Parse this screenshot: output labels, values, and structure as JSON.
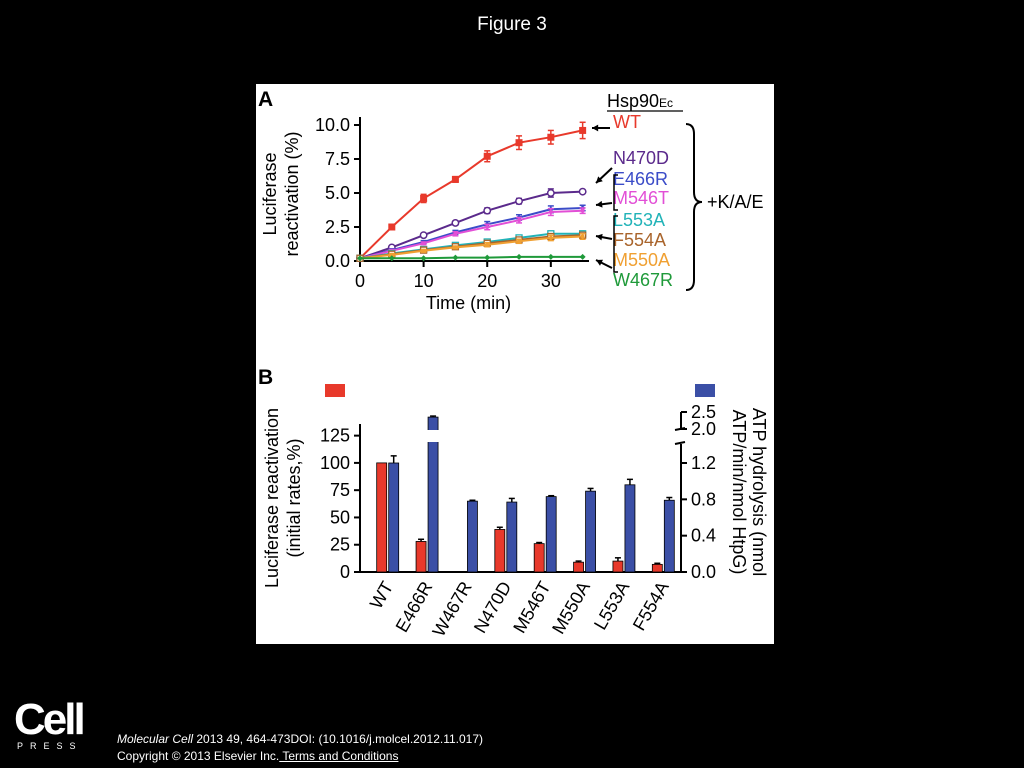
{
  "figure_title": "Figure 3",
  "logo": {
    "word": "Cell",
    "subword": "PRESS"
  },
  "citation": {
    "journal": "Molecular Cell",
    "rest": " 2013 49, 464-473DOI: (10.1016/j.molcel.2012.11.017)"
  },
  "copyright": {
    "text": "Copyright © 2013 Elsevier Inc.",
    "link": " Terms and Conditions"
  },
  "chart_data": [
    {
      "type": "line",
      "panel_label": "A",
      "header": "Hsp90",
      "header_sub": "Ec",
      "xlabel": "Time (min)",
      "ylabel_lines": [
        "Luciferase",
        "reactivation (%)"
      ],
      "xlim": [
        0,
        36
      ],
      "ylim": [
        0,
        10
      ],
      "xticks": [
        "0",
        "10",
        "20",
        "30"
      ],
      "yticks": [
        "0.0",
        "2.5",
        "5.0",
        "7.5",
        "10.0"
      ],
      "bracket_label": "+K/A/E",
      "x": [
        0,
        5,
        10,
        15,
        20,
        25,
        30,
        35
      ],
      "series": [
        {
          "name": "WT",
          "color": "#e8392b",
          "marker": "square",
          "values": [
            0.2,
            2.5,
            4.6,
            6.0,
            7.7,
            8.7,
            9.1,
            9.6
          ],
          "errors": [
            0,
            0.15,
            0.3,
            0.2,
            0.4,
            0.5,
            0.5,
            0.6
          ]
        },
        {
          "name": "N470D",
          "color": "#5b2a8c",
          "marker": "circle",
          "values": [
            0.2,
            1.0,
            1.9,
            2.8,
            3.7,
            4.4,
            5.0,
            5.1
          ],
          "errors": [
            0,
            0.1,
            0.1,
            0.15,
            0.2,
            0.2,
            0.3,
            0.1
          ]
        },
        {
          "name": "E466R",
          "color": "#3b4cc8",
          "marker": "none",
          "values": [
            0.2,
            0.8,
            1.4,
            2.1,
            2.7,
            3.2,
            3.8,
            3.9
          ],
          "errors": [
            0,
            0.1,
            0.1,
            0.15,
            0.2,
            0.2,
            0.25,
            0.2
          ]
        },
        {
          "name": "M546T",
          "color": "#e24fd6",
          "marker": "none",
          "values": [
            0.2,
            0.75,
            1.3,
            2.0,
            2.5,
            3.0,
            3.6,
            3.7
          ],
          "errors": [
            0,
            0.1,
            0.1,
            0.15,
            0.2,
            0.2,
            0.25,
            0.2
          ]
        },
        {
          "name": "L553A",
          "color": "#22b3b8",
          "marker": "square-open",
          "values": [
            0.2,
            0.55,
            0.85,
            1.15,
            1.4,
            1.7,
            2.0,
            2.0
          ],
          "errors": [
            0,
            0.1,
            0.1,
            0.1,
            0.15,
            0.15,
            0.2,
            0.2
          ]
        },
        {
          "name": "F554A",
          "color": "#a9642b",
          "marker": "square-open",
          "values": [
            0.2,
            0.5,
            0.8,
            1.05,
            1.3,
            1.55,
            1.8,
            1.9
          ],
          "errors": [
            0,
            0.1,
            0.1,
            0.1,
            0.15,
            0.15,
            0.2,
            0.2
          ]
        },
        {
          "name": "M550A",
          "color": "#f0a032",
          "marker": "none",
          "values": [
            0.2,
            0.45,
            0.75,
            1.0,
            1.2,
            1.45,
            1.7,
            1.8
          ],
          "errors": [
            0,
            0.1,
            0.1,
            0.1,
            0.15,
            0.15,
            0.2,
            0.2
          ]
        },
        {
          "name": "W467R",
          "color": "#1f9a3a",
          "marker": "diamond",
          "values": [
            0.2,
            0.2,
            0.2,
            0.25,
            0.25,
            0.3,
            0.3,
            0.3
          ],
          "errors": [
            0,
            0,
            0,
            0,
            0,
            0,
            0,
            0
          ]
        }
      ]
    },
    {
      "type": "bar",
      "panel_label": "B",
      "categories": [
        "WT",
        "E466R",
        "W467R",
        "N470D",
        "M546T",
        "M550A",
        "L553A",
        "F554A"
      ],
      "ylabel_left_lines": [
        "Luciferase reactivation",
        "(initial rates,%)"
      ],
      "ylabel_right_lines": [
        "ATP hydrolysis (nmol",
        "ATP/min/nmol HtpG)"
      ],
      "ylim_left": [
        0,
        125
      ],
      "yticks_left": [
        "0",
        "25",
        "50",
        "75",
        "100",
        "125"
      ],
      "yticks_right": [
        "0.0",
        "0.4",
        "0.8",
        "1.2",
        "2.0",
        "2.5"
      ],
      "series": [
        {
          "name": "Luciferase reactivation",
          "axis": "left",
          "color": "#e8392b",
          "values": [
            100,
            28,
            0,
            39,
            26,
            9,
            10,
            7
          ],
          "errors": [
            0,
            2,
            0,
            2,
            1,
            1,
            3,
            1
          ]
        },
        {
          "name": "ATP hydrolysis",
          "axis": "right",
          "color": "#3b4fa6",
          "values": [
            1.2,
            2.35,
            0.78,
            0.77,
            0.83,
            0.89,
            0.96,
            0.79
          ],
          "errors": [
            0.01,
            0.03,
            0.01,
            0.04,
            0.01,
            0.03,
            0.06,
            0.03
          ]
        }
      ]
    }
  ]
}
